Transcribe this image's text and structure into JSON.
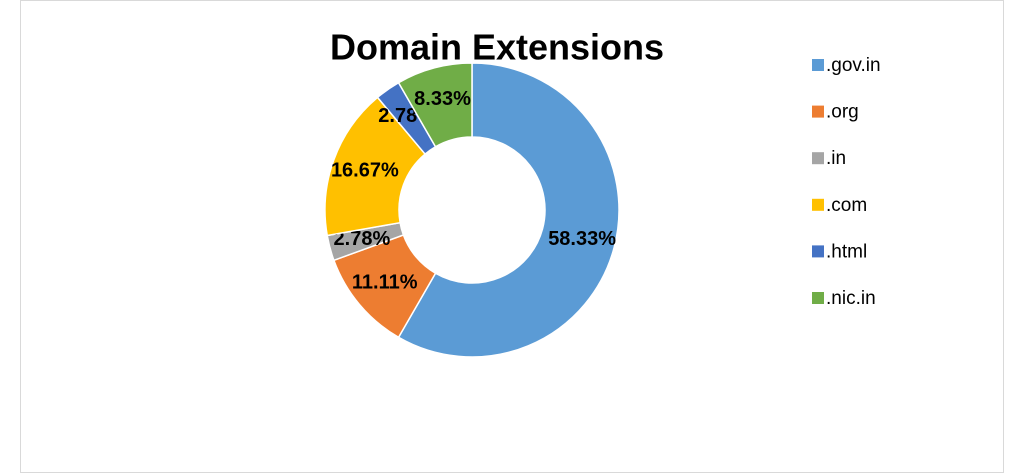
{
  "chart_data": {
    "type": "donut",
    "title": "Domain Extensions",
    "categories": [
      ".gov.in",
      ".org",
      ".in",
      ".com",
      ".html",
      ".nic.in"
    ],
    "values": [
      58.33,
      11.11,
      2.78,
      16.67,
      2.78,
      8.33
    ],
    "value_labels": [
      "58.33%",
      "11.11%",
      "2.78%",
      "16.67%",
      "2.78%",
      "8.33%"
    ],
    "colors": [
      "#5b9bd5",
      "#ed7d31",
      "#a5a5a5",
      "#ffc000",
      "#4472c4",
      "#70ad47"
    ],
    "legend": "right"
  }
}
